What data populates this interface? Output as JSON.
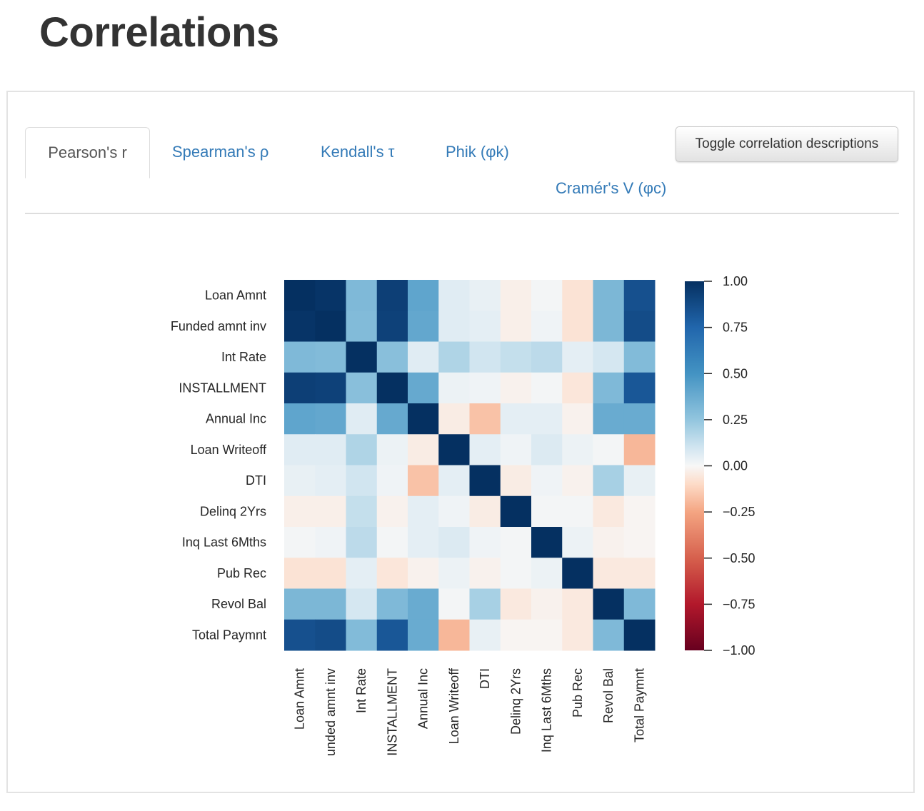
{
  "page": {
    "title": "Correlations"
  },
  "tabs": [
    {
      "label": "Pearson's r",
      "active": true
    },
    {
      "label": "Spearman's ρ",
      "active": false
    },
    {
      "label": "Kendall's τ",
      "active": false
    },
    {
      "label": "Phik (φk)",
      "active": false
    },
    {
      "label": "Cramér's V (φc)",
      "active": false
    }
  ],
  "toggle_button": {
    "label": "Toggle correlation descriptions"
  },
  "colors": {
    "link": "#337ab7",
    "text": "#333333",
    "colormap": "RdBu"
  },
  "chart_data": {
    "type": "heatmap",
    "title": "Pearson's r",
    "labels": [
      "Loan Amnt",
      "Funded amnt inv",
      "Int Rate",
      "INSTALLMENT",
      "Annual Inc",
      "Loan Writeoff",
      "DTI",
      "Delinq 2Yrs",
      "Inq Last 6Mths",
      "Pub Rec",
      "Revol Bal",
      "Total Paymnt"
    ],
    "x_tick_labels": [
      "Loan Amnt",
      "unded amnt inv",
      "Int Rate",
      "INSTALLMENT",
      "Annual Inc",
      "Loan Writeoff",
      "DTI",
      "Delinq 2Yrs",
      "Inq Last 6Mths",
      "Pub Rec",
      "Revol Bal",
      "Total Paymnt"
    ],
    "matrix": [
      [
        1.0,
        0.98,
        0.31,
        0.93,
        0.41,
        0.06,
        0.04,
        -0.03,
        0.01,
        -0.07,
        0.32,
        0.85
      ],
      [
        0.98,
        1.0,
        0.3,
        0.92,
        0.4,
        0.06,
        0.05,
        -0.03,
        0.02,
        -0.07,
        0.32,
        0.87
      ],
      [
        0.31,
        0.3,
        1.0,
        0.28,
        0.06,
        0.18,
        0.1,
        0.13,
        0.15,
        0.05,
        0.09,
        0.3
      ],
      [
        0.93,
        0.92,
        0.28,
        1.0,
        0.39,
        0.03,
        0.02,
        -0.02,
        0.01,
        -0.06,
        0.31,
        0.82
      ],
      [
        0.41,
        0.4,
        0.06,
        0.39,
        1.0,
        -0.04,
        -0.17,
        0.05,
        0.05,
        -0.02,
        0.38,
        0.38
      ],
      [
        0.06,
        0.06,
        0.18,
        0.03,
        -0.04,
        1.0,
        0.05,
        0.02,
        0.07,
        0.03,
        0.01,
        -0.2
      ],
      [
        0.04,
        0.05,
        0.1,
        0.02,
        -0.17,
        0.05,
        1.0,
        -0.04,
        0.02,
        -0.02,
        0.2,
        0.04
      ],
      [
        -0.03,
        -0.03,
        0.13,
        -0.02,
        0.05,
        0.02,
        -0.04,
        1.0,
        0.01,
        0.01,
        -0.05,
        -0.01
      ],
      [
        0.01,
        0.02,
        0.15,
        0.01,
        0.05,
        0.07,
        0.02,
        0.01,
        1.0,
        0.03,
        -0.02,
        -0.01
      ],
      [
        -0.07,
        -0.07,
        0.05,
        -0.06,
        -0.02,
        0.03,
        -0.02,
        0.01,
        0.03,
        1.0,
        -0.05,
        -0.05
      ],
      [
        0.32,
        0.32,
        0.09,
        0.31,
        0.38,
        0.01,
        0.2,
        -0.05,
        -0.02,
        -0.05,
        1.0,
        0.31
      ],
      [
        0.85,
        0.87,
        0.3,
        0.82,
        0.38,
        -0.2,
        0.04,
        -0.01,
        -0.01,
        -0.05,
        0.31,
        1.0
      ]
    ],
    "colorbar": {
      "range": [
        -1.0,
        1.0
      ],
      "ticks": [
        1.0,
        0.75,
        0.5,
        0.25,
        0.0,
        -0.25,
        -0.5,
        -0.75,
        -1.0
      ],
      "tick_labels": [
        "1.00",
        "0.75",
        "0.50",
        "0.25",
        "0.00",
        "−0.25",
        "−0.50",
        "−0.75",
        "−1.00"
      ]
    },
    "xlabel": "",
    "ylabel": ""
  }
}
